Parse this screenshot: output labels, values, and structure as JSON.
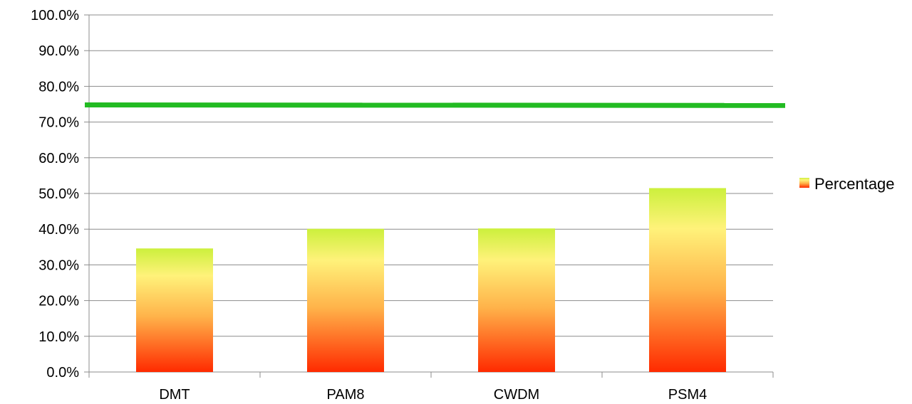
{
  "chart_data": {
    "type": "bar",
    "categories": [
      "DMT",
      "PAM8",
      "CWDM",
      "PSM4"
    ],
    "series": [
      {
        "name": "Percentage",
        "values": [
          0.346,
          0.401,
          0.402,
          0.515
        ]
      }
    ],
    "reference_line": {
      "value": 0.748,
      "color": "#22bb22"
    },
    "ylim": [
      0,
      1
    ],
    "yticks": [
      0,
      0.1,
      0.2,
      0.3,
      0.4,
      0.5,
      0.6,
      0.7,
      0.8,
      0.9,
      1.0
    ],
    "ytick_labels": [
      "0.0%",
      "10.0%",
      "20.0%",
      "30.0%",
      "40.0%",
      "50.0%",
      "60.0%",
      "70.0%",
      "80.0%",
      "90.0%",
      "100.0%"
    ],
    "grid": true,
    "legend": {
      "position": "right",
      "entries": [
        "Percentage"
      ]
    },
    "bar_gradient": {
      "top": "#ccf03c",
      "upper": "#fff27a",
      "middle": "#ffb34a",
      "bottom": "#ff2a00"
    }
  }
}
